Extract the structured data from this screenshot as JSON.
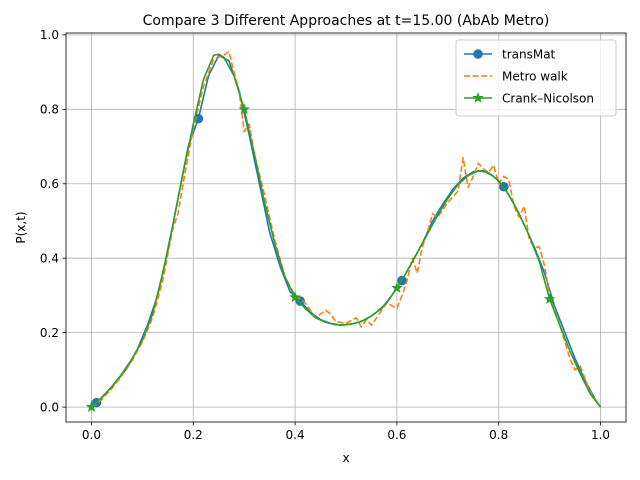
{
  "chart_data": {
    "type": "line",
    "title": "Compare 3 Different Approaches at t=15.00 (AbAb Metro)",
    "xlabel": "x",
    "ylabel": "P(x,t)",
    "xlim": [
      -0.05,
      1.05
    ],
    "ylim": [
      -0.04,
      1.005
    ],
    "xticks": [
      0.0,
      0.2,
      0.4,
      0.6,
      0.8,
      1.0
    ],
    "xtick_labels": [
      "0.0",
      "0.2",
      "0.4",
      "0.6",
      "0.8",
      "1.0"
    ],
    "yticks": [
      0.0,
      0.2,
      0.4,
      0.6,
      0.8,
      1.0
    ],
    "ytick_labels": [
      "0.0",
      "0.2",
      "0.4",
      "0.6",
      "0.8",
      "1.0"
    ],
    "grid": true,
    "legend_position": "top-right",
    "series": [
      {
        "name": "transMat",
        "color": "#1f77b4",
        "style": "solid",
        "marker": "circle",
        "x": [
          0.0,
          0.01,
          0.03,
          0.05,
          0.07,
          0.09,
          0.11,
          0.13,
          0.15,
          0.17,
          0.19,
          0.21,
          0.23,
          0.25,
          0.27,
          0.29,
          0.31,
          0.33,
          0.35,
          0.37,
          0.39,
          0.41,
          0.43,
          0.45,
          0.47,
          0.49,
          0.51,
          0.53,
          0.55,
          0.57,
          0.59,
          0.61,
          0.63,
          0.65,
          0.67,
          0.69,
          0.71,
          0.73,
          0.75,
          0.77,
          0.79,
          0.81,
          0.83,
          0.85,
          0.87,
          0.89,
          0.91,
          0.93,
          0.95,
          0.97,
          0.99,
          1.0
        ],
        "y": [
          0.0,
          0.012,
          0.04,
          0.07,
          0.105,
          0.155,
          0.22,
          0.3,
          0.42,
          0.56,
          0.7,
          0.775,
          0.89,
          0.945,
          0.93,
          0.85,
          0.73,
          0.6,
          0.47,
          0.38,
          0.31,
          0.285,
          0.255,
          0.235,
          0.225,
          0.22,
          0.223,
          0.23,
          0.245,
          0.265,
          0.3,
          0.34,
          0.39,
          0.44,
          0.5,
          0.545,
          0.585,
          0.615,
          0.632,
          0.635,
          0.62,
          0.592,
          0.545,
          0.49,
          0.43,
          0.36,
          0.27,
          0.2,
          0.13,
          0.07,
          0.02,
          0.0
        ],
        "marker_x": [
          0.01,
          0.21,
          0.41,
          0.61,
          0.81
        ],
        "marker_y": [
          0.012,
          0.775,
          0.285,
          0.34,
          0.592
        ]
      },
      {
        "name": "Metro walk",
        "color": "#ff7f0e",
        "style": "dashed",
        "x": [
          0.0,
          0.02,
          0.04,
          0.06,
          0.08,
          0.1,
          0.12,
          0.14,
          0.16,
          0.17,
          0.18,
          0.2,
          0.22,
          0.24,
          0.26,
          0.27,
          0.28,
          0.29,
          0.3,
          0.31,
          0.32,
          0.34,
          0.36,
          0.38,
          0.4,
          0.41,
          0.42,
          0.44,
          0.46,
          0.47,
          0.48,
          0.5,
          0.52,
          0.53,
          0.54,
          0.55,
          0.56,
          0.58,
          0.6,
          0.61,
          0.62,
          0.63,
          0.64,
          0.65,
          0.66,
          0.67,
          0.68,
          0.7,
          0.72,
          0.73,
          0.74,
          0.75,
          0.76,
          0.77,
          0.78,
          0.79,
          0.8,
          0.81,
          0.82,
          0.83,
          0.84,
          0.85,
          0.86,
          0.87,
          0.88,
          0.89,
          0.9,
          0.92,
          0.94,
          0.95,
          0.96,
          0.98,
          1.0
        ],
        "y": [
          0.0,
          0.02,
          0.05,
          0.085,
          0.125,
          0.175,
          0.24,
          0.34,
          0.48,
          0.52,
          0.6,
          0.75,
          0.86,
          0.935,
          0.945,
          0.955,
          0.9,
          0.85,
          0.74,
          0.76,
          0.68,
          0.57,
          0.45,
          0.35,
          0.3,
          0.29,
          0.28,
          0.24,
          0.26,
          0.25,
          0.23,
          0.225,
          0.24,
          0.215,
          0.235,
          0.22,
          0.24,
          0.28,
          0.265,
          0.3,
          0.34,
          0.4,
          0.36,
          0.43,
          0.47,
          0.52,
          0.51,
          0.55,
          0.58,
          0.67,
          0.59,
          0.62,
          0.655,
          0.64,
          0.63,
          0.65,
          0.6,
          0.62,
          0.61,
          0.54,
          0.51,
          0.54,
          0.45,
          0.43,
          0.43,
          0.38,
          0.3,
          0.22,
          0.13,
          0.1,
          0.11,
          0.04,
          0.0
        ]
      },
      {
        "name": "Crank–Nicolson",
        "color": "#2ca02c",
        "style": "solid",
        "marker": "star",
        "x": [
          0.0,
          0.02,
          0.04,
          0.06,
          0.08,
          0.1,
          0.12,
          0.14,
          0.16,
          0.18,
          0.2,
          0.22,
          0.24,
          0.25,
          0.26,
          0.28,
          0.3,
          0.32,
          0.34,
          0.36,
          0.38,
          0.4,
          0.42,
          0.44,
          0.46,
          0.48,
          0.5,
          0.52,
          0.54,
          0.56,
          0.58,
          0.6,
          0.62,
          0.64,
          0.66,
          0.68,
          0.7,
          0.72,
          0.74,
          0.76,
          0.78,
          0.8,
          0.82,
          0.84,
          0.86,
          0.88,
          0.9,
          0.92,
          0.94,
          0.96,
          0.98,
          1.0
        ],
        "y": [
          0.0,
          0.025,
          0.055,
          0.09,
          0.13,
          0.18,
          0.25,
          0.36,
          0.49,
          0.63,
          0.76,
          0.88,
          0.945,
          0.948,
          0.94,
          0.89,
          0.8,
          0.68,
          0.55,
          0.44,
          0.35,
          0.295,
          0.265,
          0.24,
          0.228,
          0.221,
          0.221,
          0.226,
          0.236,
          0.255,
          0.28,
          0.32,
          0.365,
          0.415,
          0.465,
          0.515,
          0.56,
          0.598,
          0.622,
          0.635,
          0.63,
          0.608,
          0.57,
          0.52,
          0.46,
          0.39,
          0.29,
          0.22,
          0.15,
          0.09,
          0.035,
          0.0
        ],
        "marker_x": [
          0.0,
          0.3,
          0.4,
          0.6,
          0.9
        ],
        "marker_y": [
          0.0,
          0.8,
          0.295,
          0.32,
          0.29
        ]
      }
    ]
  }
}
